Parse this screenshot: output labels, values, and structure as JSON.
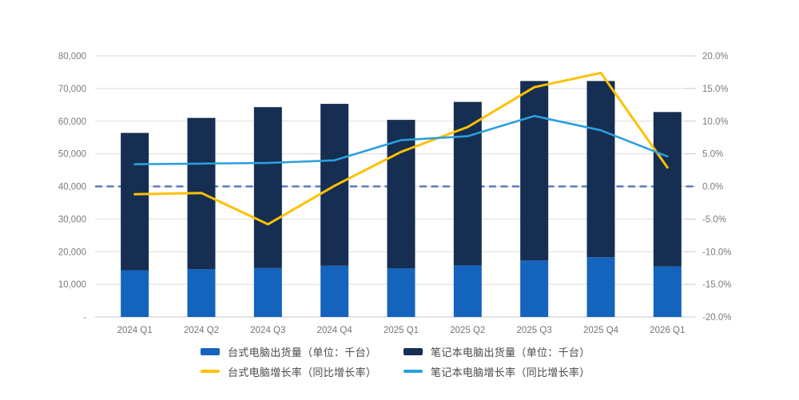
{
  "chart_data": {
    "type": "combo-stacked-bar-line",
    "categories": [
      "2024 Q1",
      "2024 Q2",
      "2024 Q3",
      "2024 Q4",
      "2025 Q1",
      "2025 Q2",
      "2025 Q3",
      "2025 Q4",
      "2026 Q1"
    ],
    "bar_series": [
      {
        "name": "台式电脑出货量（单位：千台）",
        "color": "#1463BD",
        "stack": "shipments",
        "values": [
          14300,
          14600,
          15000,
          15700,
          14900,
          15800,
          17300,
          18300,
          15500
        ]
      },
      {
        "name": "笔记本电脑出货量（单位：千台）",
        "color": "#152E52",
        "stack": "shipments",
        "values": [
          42100,
          46400,
          49300,
          49600,
          45500,
          50100,
          55000,
          54000,
          47300
        ]
      }
    ],
    "stack_totals": [
      56400,
      61000,
      64300,
      65300,
      60400,
      65900,
      72300,
      72300,
      62800
    ],
    "line_series": [
      {
        "name": "台式电脑增长率（同比增长率）",
        "color": "#FFC000",
        "axis": "right",
        "width": 3,
        "values": [
          -1.2,
          -1.0,
          -5.8,
          0.1,
          5.3,
          9.1,
          15.2,
          17.4,
          2.9
        ]
      },
      {
        "name": "笔记本电脑增长率（同比增长率）",
        "color": "#2BA0DC",
        "axis": "right",
        "width": 2.6,
        "values": [
          3.4,
          3.5,
          3.6,
          4.0,
          7.1,
          7.7,
          10.8,
          8.6,
          4.6
        ]
      }
    ],
    "left_axis": {
      "min": 0,
      "max": 80000,
      "tick_step": 10000,
      "labels_bottom_to_top": [
        "-",
        "10,000",
        "20,000",
        "30,000",
        "40,000",
        "50,000",
        "60,000",
        "70,000",
        "80,000"
      ]
    },
    "right_axis": {
      "min": -20,
      "max": 20,
      "tick_step": 5,
      "labels_bottom_to_top": [
        "-20.0%",
        "-15.0%",
        "-10.0%",
        "-5.0%",
        "0.0%",
        "5.0%",
        "10.0%",
        "15.0%",
        "20.0%"
      ]
    },
    "zero_line": {
      "value": 0.0,
      "style": "dashed",
      "color": "#4D6FB5"
    },
    "grid": {
      "show": true,
      "color": "#DBDBDB",
      "baseline_color": "#C4C4C4"
    },
    "legend_position": "bottom",
    "background": "#FFFFFF"
  }
}
